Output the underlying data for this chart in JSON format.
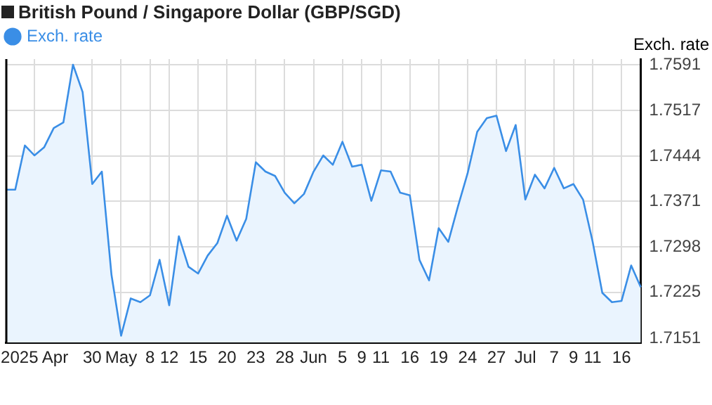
{
  "chart_data": {
    "type": "area",
    "title": "British Pound / Singapore Dollar (GBP/SGD)",
    "ylabel": "Exch. rate",
    "categories": [
      null,
      null,
      null,
      "2025 Apr",
      null,
      null,
      null,
      null,
      null,
      "30",
      null,
      null,
      "May",
      null,
      null,
      "8",
      null,
      "12",
      null,
      null,
      "15",
      null,
      null,
      "20",
      null,
      null,
      "23",
      null,
      null,
      "28",
      null,
      null,
      "Jun",
      null,
      null,
      "5",
      null,
      "9",
      null,
      "11",
      null,
      null,
      "16",
      null,
      null,
      "19",
      null,
      null,
      "24",
      null,
      null,
      "27",
      null,
      null,
      "Jul",
      null,
      null,
      "7",
      null,
      "9",
      null,
      "11",
      null,
      null,
      "16",
      null,
      null
    ],
    "series": [
      {
        "name": "Exch. rate",
        "color": "#3a8ee6",
        "values": [
          1.739,
          1.739,
          1.7461,
          1.7445,
          1.7458,
          1.7489,
          1.7498,
          1.7591,
          1.7547,
          1.7399,
          1.7419,
          1.7253,
          1.7155,
          1.7215,
          1.7209,
          1.722,
          1.7277,
          1.7204,
          1.7315,
          1.7266,
          1.7255,
          1.7284,
          1.7304,
          1.7348,
          1.7308,
          1.7343,
          1.7434,
          1.7419,
          1.7412,
          1.7385,
          1.7368,
          1.7383,
          1.7419,
          1.7445,
          1.743,
          1.7467,
          1.7427,
          1.743,
          1.7372,
          1.7421,
          1.7419,
          1.7385,
          1.7381,
          1.7277,
          1.7244,
          1.7328,
          1.7306,
          1.7363,
          1.7416,
          1.7483,
          1.7505,
          1.7509,
          1.7452,
          1.7494,
          1.7374,
          1.7414,
          1.7392,
          1.7425,
          1.7392,
          1.7399,
          1.7374,
          1.7306,
          1.7224,
          1.7209,
          1.7211,
          1.7268,
          1.7233
        ]
      }
    ],
    "ylim": [
      1.7144,
      1.76
    ],
    "yticks": [
      1.7151,
      1.7225,
      1.7298,
      1.7371,
      1.7444,
      1.7517,
      1.7591
    ],
    "grid": true,
    "legend": "top left",
    "marker": "none",
    "line_style": "solid"
  }
}
